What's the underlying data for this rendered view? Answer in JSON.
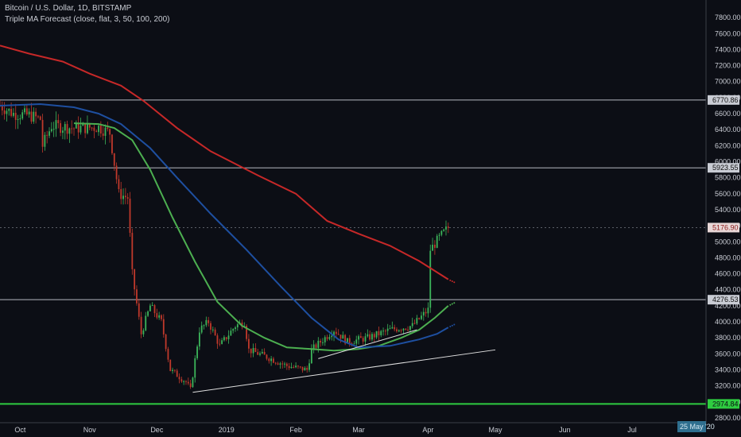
{
  "header": {
    "title": "Bitcoin / U.S. Dollar, 1D, BITSTAMP",
    "indicator": "Triple MA Forecast (close, flat, 3, 50, 100, 200)"
  },
  "colors": {
    "background": "#0c0e15",
    "candle_up": "#3cb55a",
    "candle_down": "#c0392b",
    "ma_fast": "#4caf50",
    "ma_mid": "#1e4fa0",
    "ma_slow": "#c62828",
    "level_line": "#b5b8c0",
    "support_line": "#2ecc40",
    "trendline": "#e0e0e0"
  },
  "chart_data": {
    "type": "candlestick",
    "title": "Bitcoin / U.S. Dollar, 1D, BITSTAMP",
    "ylim": [
      2760,
      7960
    ],
    "y_ticks": [
      2800,
      3000,
      3200,
      3400,
      3600,
      3800,
      4000,
      4200,
      4400,
      4600,
      4800,
      5000,
      5200,
      5400,
      5600,
      5800,
      6000,
      6200,
      6400,
      6600,
      6800,
      7000,
      7200,
      7400,
      7600,
      7800
    ],
    "y_tick_labels": [
      "2800.00",
      "3000.00",
      "3200.00",
      "3400.00",
      "3600.00",
      "3800.00",
      "4000.00",
      "4200.00",
      "4400.00",
      "4600.00",
      "4800.00",
      "5000.00",
      "5200.00",
      "5400.00",
      "5600.00",
      "5800.00",
      "6000.00",
      "6200.00",
      "6400.00",
      "6600.00",
      "6800.00",
      "7000.00",
      "7200.00",
      "7400.00",
      "7600.00",
      "7800.00"
    ],
    "x_dates": [
      "2018-10-01",
      "2018-11-01",
      "2018-12-01",
      "2019-01-01",
      "2019-02-01",
      "2019-03-01",
      "2019-04-01",
      "2019-05-01",
      "2019-06-01",
      "2019-07-01"
    ],
    "x_tick_labels": [
      "Oct",
      "Nov",
      "Dec",
      "2019",
      "Feb",
      "Mar",
      "Apr",
      "May",
      "Jun",
      "Jul"
    ],
    "date_range": [
      "2018-09-22",
      "2019-08-03"
    ],
    "last_date": "2019-04-10",
    "horizontal_levels": [
      {
        "value": 6770.86,
        "label": "6770.86",
        "color": "#b5b8c0"
      },
      {
        "value": 5923.55,
        "label": "5923.55",
        "color": "#b5b8c0"
      },
      {
        "value": 4276.53,
        "label": "4276.53",
        "color": "#b5b8c0"
      },
      {
        "value": 2974.84,
        "label": "2974.84",
        "color": "#2ecc40"
      }
    ],
    "last_price": {
      "value": 5176.9,
      "label": "5176.90"
    },
    "date_tag": "25 May '20",
    "ohlc_keypoints": [
      [
        "2018-09-22",
        6700
      ],
      [
        "2018-09-28",
        6600
      ],
      [
        "2018-10-05",
        6580
      ],
      [
        "2018-10-10",
        6530
      ],
      [
        "2018-10-11",
        6200
      ],
      [
        "2018-10-15",
        6450
      ],
      [
        "2018-10-25",
        6420
      ],
      [
        "2018-11-05",
        6430
      ],
      [
        "2018-11-10",
        6360
      ],
      [
        "2018-11-14",
        5600
      ],
      [
        "2018-11-18",
        5550
      ],
      [
        "2018-11-20",
        4600
      ],
      [
        "2018-11-24",
        3850
      ],
      [
        "2018-11-28",
        4200
      ],
      [
        "2018-12-03",
        4000
      ],
      [
        "2018-12-07",
        3400
      ],
      [
        "2018-12-14",
        3250
      ],
      [
        "2018-12-16",
        3150
      ],
      [
        "2018-12-20",
        3900
      ],
      [
        "2018-12-24",
        4000
      ],
      [
        "2018-12-29",
        3700
      ],
      [
        "2019-01-05",
        3950
      ],
      [
        "2019-01-09",
        4000
      ],
      [
        "2019-01-11",
        3650
      ],
      [
        "2019-01-20",
        3550
      ],
      [
        "2019-01-28",
        3450
      ],
      [
        "2019-02-06",
        3400
      ],
      [
        "2019-02-08",
        3650
      ],
      [
        "2019-02-18",
        3900
      ],
      [
        "2019-02-24",
        3750
      ],
      [
        "2019-03-05",
        3800
      ],
      [
        "2019-03-15",
        3900
      ],
      [
        "2019-03-25",
        3950
      ],
      [
        "2019-04-01",
        4150
      ],
      [
        "2019-04-02",
        4900
      ],
      [
        "2019-04-06",
        5050
      ],
      [
        "2019-04-10",
        5176.9
      ]
    ],
    "series": [
      {
        "name": "MA 50",
        "color": "#4caf50",
        "points": [
          [
            "2018-10-25",
            6480
          ],
          [
            "2018-11-05",
            6470
          ],
          [
            "2018-11-12",
            6420
          ],
          [
            "2018-11-20",
            6270
          ],
          [
            "2018-11-28",
            5900
          ],
          [
            "2018-12-08",
            5300
          ],
          [
            "2018-12-18",
            4750
          ],
          [
            "2018-12-28",
            4250
          ],
          [
            "2019-01-08",
            3950
          ],
          [
            "2019-01-18",
            3800
          ],
          [
            "2019-01-28",
            3680
          ],
          [
            "2019-02-08",
            3660
          ],
          [
            "2019-02-18",
            3640
          ],
          [
            "2019-03-01",
            3660
          ],
          [
            "2019-03-10",
            3700
          ],
          [
            "2019-03-20",
            3800
          ],
          [
            "2019-03-28",
            3900
          ],
          [
            "2019-04-04",
            4050
          ],
          [
            "2019-04-10",
            4200
          ]
        ]
      },
      {
        "name": "MA 100",
        "color": "#1e4fa0",
        "points": [
          [
            "2018-09-22",
            6700
          ],
          [
            "2018-10-10",
            6720
          ],
          [
            "2018-10-25",
            6680
          ],
          [
            "2018-11-05",
            6600
          ],
          [
            "2018-11-15",
            6470
          ],
          [
            "2018-11-28",
            6170
          ],
          [
            "2018-12-10",
            5800
          ],
          [
            "2018-12-25",
            5350
          ],
          [
            "2019-01-10",
            4900
          ],
          [
            "2019-01-25",
            4450
          ],
          [
            "2019-02-08",
            4050
          ],
          [
            "2019-02-20",
            3780
          ],
          [
            "2019-03-01",
            3680
          ],
          [
            "2019-03-15",
            3700
          ],
          [
            "2019-03-28",
            3780
          ],
          [
            "2019-04-05",
            3850
          ],
          [
            "2019-04-10",
            3930
          ]
        ]
      },
      {
        "name": "MA 200",
        "color": "#c62828",
        "points": [
          [
            "2018-09-22",
            7450
          ],
          [
            "2018-10-05",
            7350
          ],
          [
            "2018-10-20",
            7250
          ],
          [
            "2018-11-01",
            7100
          ],
          [
            "2018-11-15",
            6950
          ],
          [
            "2018-11-25",
            6760
          ],
          [
            "2018-12-10",
            6420
          ],
          [
            "2018-12-25",
            6130
          ],
          [
            "2019-01-15",
            5830
          ],
          [
            "2019-02-01",
            5600
          ],
          [
            "2019-02-15",
            5260
          ],
          [
            "2019-03-01",
            5100
          ],
          [
            "2019-03-15",
            4950
          ],
          [
            "2019-03-28",
            4760
          ],
          [
            "2019-04-10",
            4530
          ]
        ]
      }
    ],
    "trendlines": [
      {
        "from": [
          "2018-12-17",
          3120
        ],
        "to": [
          "2019-05-01",
          3650
        ]
      },
      {
        "from": [
          "2019-02-11",
          3540
        ],
        "to": [
          "2019-03-27",
          3900
        ]
      }
    ]
  }
}
